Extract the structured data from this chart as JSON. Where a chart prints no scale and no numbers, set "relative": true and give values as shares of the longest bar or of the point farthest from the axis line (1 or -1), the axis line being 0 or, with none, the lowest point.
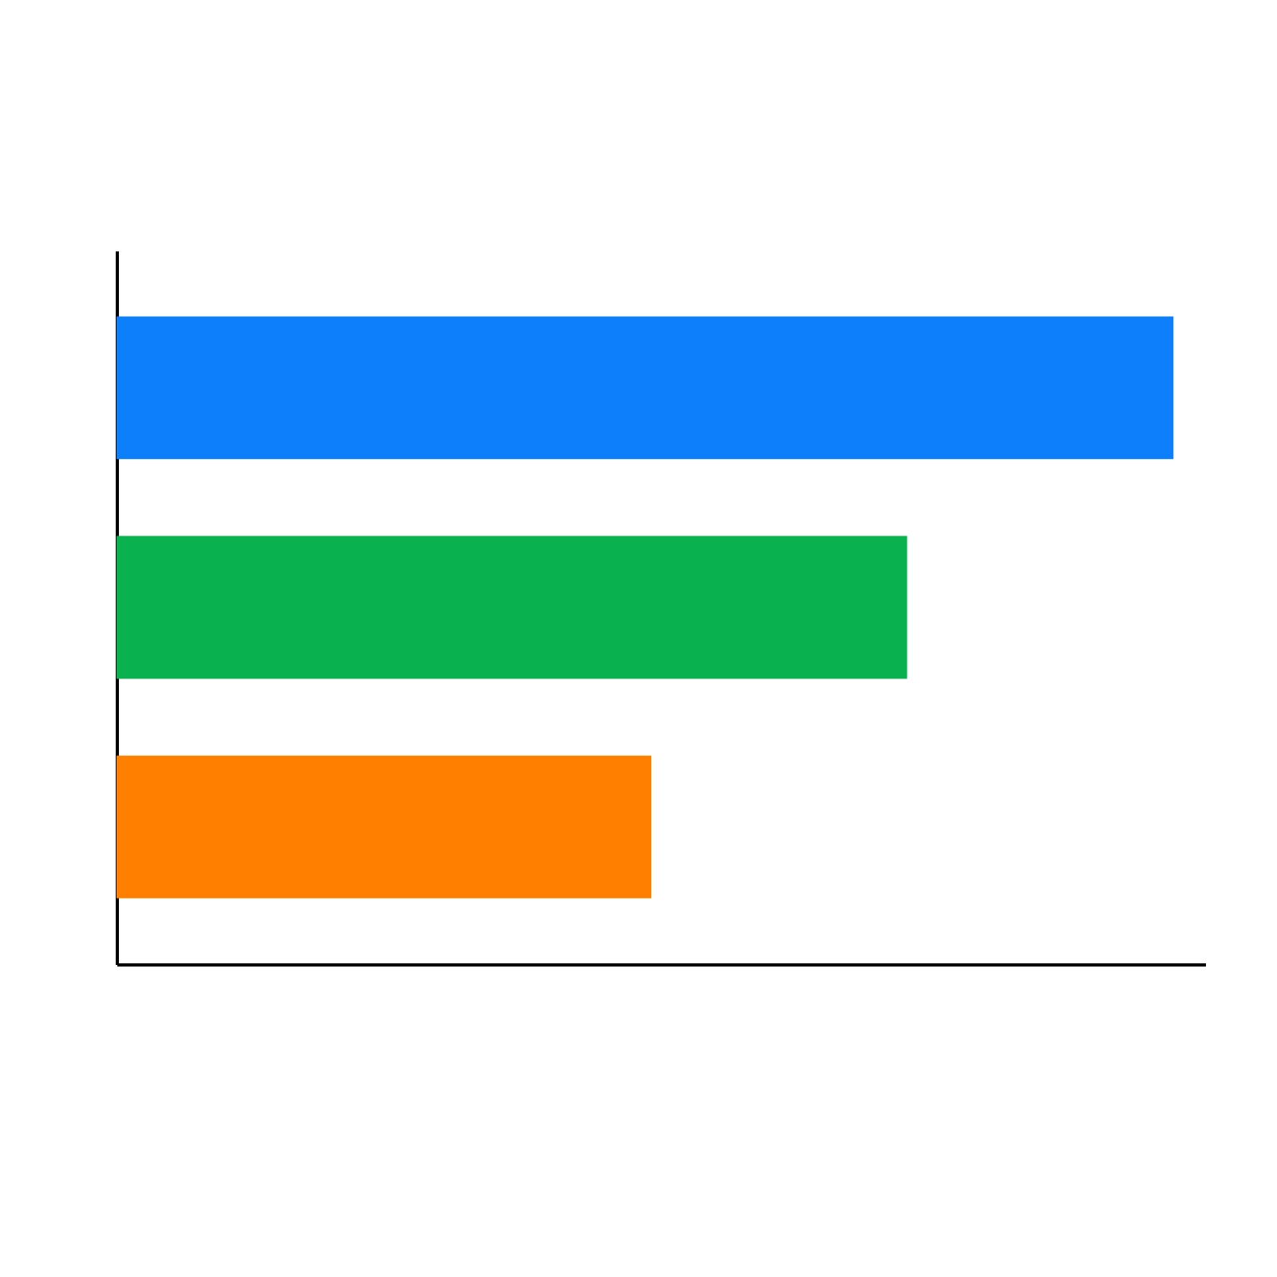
{
  "chart_data": {
    "type": "bar",
    "orientation": "horizontal",
    "relative": true,
    "categories": [
      null,
      null,
      null
    ],
    "values": [
      1,
      0.748,
      0.506
    ],
    "colors": [
      "#0d7ffa",
      "#0ab14f",
      "#ff8000"
    ]
  }
}
